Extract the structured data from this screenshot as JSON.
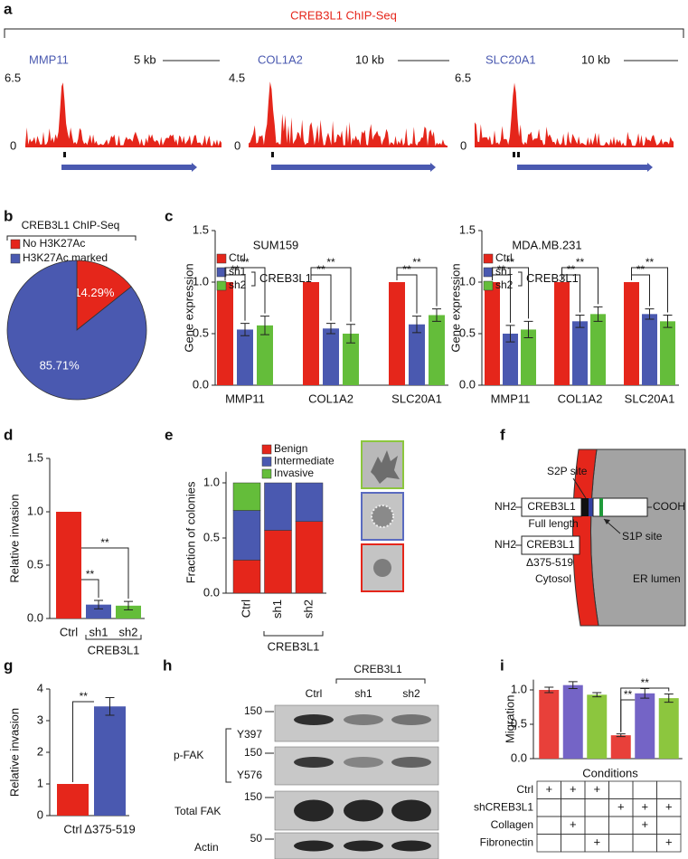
{
  "panel_labels": [
    "a",
    "b",
    "c",
    "d",
    "e",
    "f",
    "g",
    "h",
    "i"
  ],
  "chipseq": {
    "title": "CREB3L1 ChIP-Seq",
    "tracks": [
      {
        "gene": "MMP11",
        "scale": "5 kb",
        "ylim": [
          0,
          6.5
        ]
      },
      {
        "gene": "COL1A2",
        "scale": "10 kb",
        "ylim": [
          0,
          4.5
        ]
      },
      {
        "gene": "SLC20A1",
        "scale": "10 kb",
        "ylim": [
          0,
          6.5
        ]
      }
    ]
  },
  "chart_data": [
    {
      "type": "pie",
      "title": "CREB3L1 ChIP-Seq",
      "categories": [
        "No H3K27Ac",
        "H3K27Ac marked"
      ],
      "values": [
        14.29,
        85.71
      ],
      "value_labels": [
        "14.29%",
        "85.71%"
      ],
      "colors": [
        "#e5261b",
        "#4a59b0"
      ]
    },
    {
      "type": "bar",
      "title": "SUM159",
      "ylabel": "Gene expression",
      "categories": [
        "MMP11",
        "COL1A2",
        "SLC20A1"
      ],
      "series": [
        {
          "name": "Ctrl",
          "color": "#e5261b",
          "values": [
            1,
            1,
            1
          ]
        },
        {
          "name": "sh1",
          "color": "#4a59b0",
          "values": [
            0.54,
            0.55,
            0.59
          ],
          "errors": [
            0.06,
            0.05,
            0.08
          ]
        },
        {
          "name": "sh2",
          "color": "#64bd3a",
          "values": [
            0.58,
            0.5,
            0.68
          ],
          "errors": [
            0.09,
            0.09,
            0.06
          ]
        }
      ],
      "group_label": "CREB3L1",
      "significance": [
        "**",
        "**",
        "**",
        "**",
        "**",
        "**"
      ],
      "ylim": [
        0,
        1.5
      ],
      "yticks": [
        {
          "value": 0,
          "label": "0.0"
        },
        {
          "value": 0.5,
          "label": "0.5"
        },
        {
          "value": 1,
          "label": "1.0"
        },
        {
          "value": 1.5,
          "label": "1.5"
        }
      ]
    },
    {
      "type": "bar",
      "title": "MDA.MB.231",
      "ylabel": "Gene expression",
      "categories": [
        "MMP11",
        "COL1A2",
        "SLC20A1"
      ],
      "series": [
        {
          "name": "Ctrl",
          "color": "#e5261b",
          "values": [
            1,
            1,
            1
          ]
        },
        {
          "name": "sh1",
          "color": "#4a59b0",
          "values": [
            0.5,
            0.62,
            0.69
          ],
          "errors": [
            0.08,
            0.06,
            0.05
          ]
        },
        {
          "name": "sh2",
          "color": "#64bd3a",
          "values": [
            0.54,
            0.69,
            0.62
          ],
          "errors": [
            0.08,
            0.07,
            0.06
          ]
        }
      ],
      "group_label": "CREB3L1",
      "significance": [
        "**",
        "**",
        "**",
        "**",
        "**",
        "**"
      ],
      "ylim": [
        0,
        1.5
      ],
      "yticks": [
        {
          "value": 0,
          "label": "0.0"
        },
        {
          "value": 0.5,
          "label": "0.5"
        },
        {
          "value": 1,
          "label": "1.0"
        },
        {
          "value": 1.5,
          "label": "1.5"
        }
      ]
    },
    {
      "type": "bar",
      "ylabel": "Relative invasion",
      "categories": [
        "Ctrl",
        "sh1",
        "sh2"
      ],
      "values": [
        1,
        0.13,
        0.12
      ],
      "errors": [
        null,
        0.04,
        0.04
      ],
      "colors": [
        "#e5261b",
        "#4a59b0",
        "#64bd3a"
      ],
      "group_label": "CREB3L1",
      "significance": [
        "**",
        "**"
      ],
      "ylim": [
        0,
        1.5
      ],
      "yticks": [
        {
          "value": 0,
          "label": "0.0"
        },
        {
          "value": 0.5,
          "label": "0.5"
        },
        {
          "value": 1,
          "label": "1.0"
        },
        {
          "value": 1.5,
          "label": "1.5"
        }
      ]
    },
    {
      "type": "bar",
      "stacked": true,
      "ylabel": "Fraction of colonies",
      "categories": [
        "Ctrl",
        "sh1",
        "sh2"
      ],
      "series": [
        {
          "name": "Benign",
          "color": "#e5261b",
          "values": [
            0.3,
            0.57,
            0.65
          ]
        },
        {
          "name": "Intermediate",
          "color": "#4a59b0",
          "values": [
            0.45,
            0.43,
            0.35
          ]
        },
        {
          "name": "Invasive",
          "color": "#64bd3a",
          "values": [
            0.25,
            0,
            0
          ]
        }
      ],
      "group_label": "CREB3L1",
      "ylim": [
        0,
        1.1
      ],
      "yticks": [
        {
          "value": 0,
          "label": "0.0"
        },
        {
          "value": 0.5,
          "label": "0.5"
        },
        {
          "value": 1,
          "label": "1.0"
        }
      ]
    },
    {
      "type": "bar",
      "ylabel": "Relative invasion",
      "categories": [
        "Ctrl",
        "Δ375-519"
      ],
      "values": [
        1,
        3.45
      ],
      "errors": [
        null,
        0.28
      ],
      "colors": [
        "#e5261b",
        "#4a59b0"
      ],
      "significance": [
        "**"
      ],
      "ylim": [
        0,
        4
      ],
      "yticks": [
        0,
        1,
        2,
        3,
        4
      ]
    },
    {
      "type": "bar",
      "ylabel": "Migration",
      "xlabel": "Conditions",
      "values": [
        1,
        1.07,
        0.93,
        0.34,
        0.95,
        0.88
      ],
      "errors": [
        0.04,
        0.05,
        0.03,
        0.02,
        0.07,
        0.06
      ],
      "colors": [
        "#e8403a",
        "#7464c6",
        "#8cc63e",
        "#e8403a",
        "#7464c6",
        "#8cc63e"
      ],
      "significance": [
        "**",
        "**"
      ],
      "ylim": [
        0,
        1.15
      ],
      "yticks": [
        {
          "value": 0,
          "label": "0.0"
        },
        {
          "value": 0.5,
          "label": "0.5"
        },
        {
          "value": 1,
          "label": "1.0"
        }
      ],
      "table": {
        "rows": [
          {
            "label": "Ctrl",
            "cells": [
              "+",
              "+",
              "+",
              null,
              null,
              null
            ]
          },
          {
            "label": "shCREB3L1",
            "cells": [
              null,
              null,
              null,
              "+",
              "+",
              "+"
            ]
          },
          {
            "label": "Collagen",
            "cells": [
              null,
              "+",
              null,
              null,
              "+",
              null
            ]
          },
          {
            "label": "Fibronectin",
            "cells": [
              null,
              null,
              "+",
              null,
              null,
              "+"
            ]
          }
        ]
      }
    }
  ],
  "diagram": {
    "protein": "CREB3L1",
    "nh2": "NH2",
    "cooh": "COOH",
    "s2p": "S2P site",
    "s1p": "S1P site",
    "full": "Full length",
    "deletion": "Δ375-519",
    "cytosol": "Cytosol",
    "lumen": "ER lumen"
  },
  "blot": {
    "group": "CREB3L1",
    "lanes": [
      "Ctrl",
      "sh1",
      "sh2"
    ],
    "phospho": "p-FAK",
    "rows": [
      {
        "label": "Y397",
        "marker": 150
      },
      {
        "label": "Y576",
        "marker": 150
      },
      {
        "label": "Total FAK",
        "marker": 150
      },
      {
        "label": "Actin",
        "marker": 50
      }
    ]
  }
}
